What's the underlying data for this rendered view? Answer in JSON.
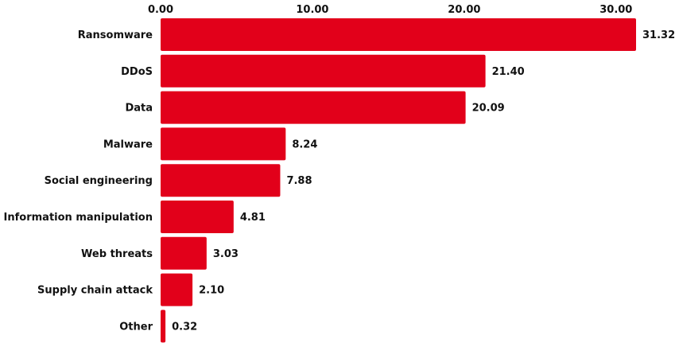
{
  "chart_data": {
    "type": "bar",
    "orientation": "horizontal",
    "categories": [
      "Ransomware",
      "DDoS",
      "Data",
      "Malware",
      "Social engineering",
      "Information manipulation",
      "Web threats",
      "Supply chain attack",
      "Other"
    ],
    "values": [
      31.32,
      21.4,
      20.09,
      8.24,
      7.88,
      4.81,
      3.03,
      2.1,
      0.32
    ],
    "value_labels": [
      "31.32",
      "21.40",
      "20.09",
      "8.24",
      "7.88",
      "4.81",
      "3.03",
      "2.10",
      "0.32"
    ],
    "ticks": [
      0,
      10,
      20,
      30
    ],
    "tick_labels": [
      "0.00",
      "10.00",
      "20.00",
      "30.00"
    ],
    "xlim": [
      0,
      31.32
    ],
    "x_axis_position": "top",
    "grid": false,
    "legend": "none",
    "title": "",
    "xlabel": "",
    "ylabel": "",
    "bar_color": "#e2001a"
  }
}
